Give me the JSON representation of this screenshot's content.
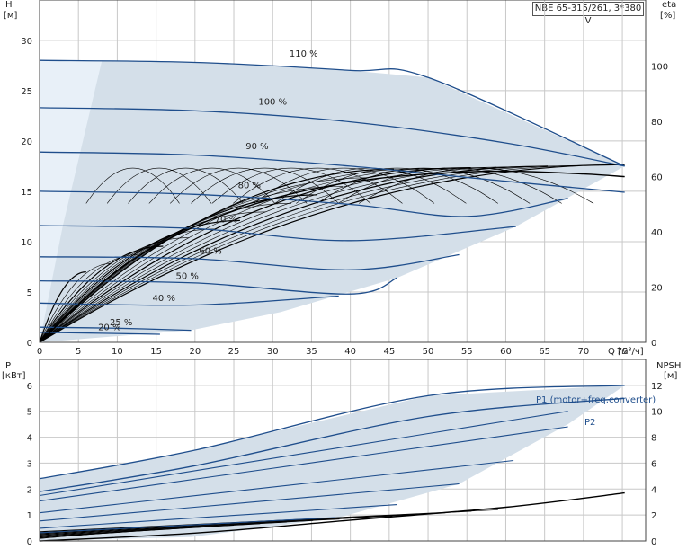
{
  "model_label": "NBE 65-315/261, 3*380 V",
  "colors": {
    "envelope": "#d4dfe9",
    "envelope_light": "#e8f0f8",
    "curve": "#1f4e8c",
    "grid": "#c8c8c8",
    "black": "#000000"
  },
  "chart_data": [
    {
      "type": "line",
      "id": "head",
      "ylabel_top": "H",
      "yunit": "[м]",
      "y2label_top": "eta",
      "y2unit": "[%]",
      "xlabel": "Q [м³/ч]",
      "xlim": [
        0,
        78
      ],
      "ylim": [
        0,
        34
      ],
      "y2lim": [
        0,
        124
      ],
      "xticks": [
        0,
        5,
        10,
        15,
        20,
        25,
        30,
        35,
        40,
        45,
        50,
        55,
        60,
        65,
        70,
        75
      ],
      "yticks": [
        0,
        5,
        10,
        15,
        20,
        25,
        30
      ],
      "y2ticks": [
        0,
        20,
        40,
        60,
        80,
        100
      ],
      "series": [
        {
          "name": "110 %",
          "x": [
            0,
            20,
            40,
            50,
            75.3
          ],
          "y": [
            28.0,
            27.8,
            27.0,
            26.3,
            17.5
          ]
        },
        {
          "name": "100 %",
          "x": [
            0,
            20,
            40,
            60,
            75.3
          ],
          "y": [
            23.3,
            23.0,
            21.9,
            19.8,
            17.5
          ]
        },
        {
          "name": "90 %",
          "x": [
            0,
            20,
            40,
            60,
            75.3
          ],
          "y": [
            18.9,
            18.6,
            17.5,
            16.0,
            14.9
          ]
        },
        {
          "name": "80 %",
          "x": [
            0,
            20,
            40,
            55,
            68
          ],
          "y": [
            15.0,
            14.7,
            13.7,
            12.5,
            14.3
          ]
        },
        {
          "name": "70 %",
          "x": [
            0,
            20,
            40,
            61.3
          ],
          "y": [
            11.6,
            11.3,
            10.1,
            11.5
          ]
        },
        {
          "name": "60 %",
          "x": [
            0,
            20,
            40,
            54
          ],
          "y": [
            8.5,
            8.3,
            7.2,
            8.7
          ]
        },
        {
          "name": "50 %",
          "x": [
            0,
            20,
            40,
            46
          ],
          "y": [
            6.1,
            5.9,
            4.8,
            6.4
          ]
        },
        {
          "name": "40 %",
          "x": [
            0,
            20,
            38.5
          ],
          "y": [
            3.9,
            3.7,
            4.6
          ]
        },
        {
          "name": "25 %",
          "x": [
            0,
            10,
            19.5
          ],
          "y": [
            1.5,
            1.4,
            1.2
          ]
        },
        {
          "name": "20 %",
          "x": [
            0,
            8,
            15.5
          ],
          "y": [
            1.0,
            0.9,
            0.8
          ]
        }
      ],
      "eta_curve": {
        "x": [
          0,
          10,
          20,
          30,
          40,
          50,
          60,
          70,
          75.3
        ],
        "y": [
          0,
          26,
          42,
          52,
          58,
          61,
          62,
          61,
          60
        ]
      }
    },
    {
      "type": "line",
      "id": "power",
      "ylabel_top": "P",
      "yunit": "[кВт]",
      "y2label_top": "NPSH",
      "y2unit": "[м]",
      "xlim": [
        0,
        78
      ],
      "ylim": [
        0,
        7.0
      ],
      "y2lim": [
        0,
        14.0
      ],
      "yticks": [
        0,
        1,
        2,
        3,
        4,
        5,
        6
      ],
      "y2ticks": [
        0,
        2,
        4,
        6,
        8,
        10,
        12
      ],
      "annotations": [
        "P1 (motor+freq.converter)",
        "P2"
      ],
      "series": [
        {
          "name": "P1 (motor+freq.converter)",
          "x": [
            0,
            20,
            50,
            75.3
          ],
          "y": [
            2.4,
            3.5,
            5.6,
            6.0
          ]
        },
        {
          "name": "P2",
          "x": [
            0,
            20,
            50,
            75.3
          ],
          "y": [
            1.9,
            2.9,
            4.8,
            5.5
          ]
        }
      ],
      "npsh_curve": {
        "x": [
          0,
          20,
          40,
          60,
          75.3
        ],
        "y": [
          0,
          0.6,
          1.6,
          2.6,
          3.7
        ]
      }
    }
  ]
}
